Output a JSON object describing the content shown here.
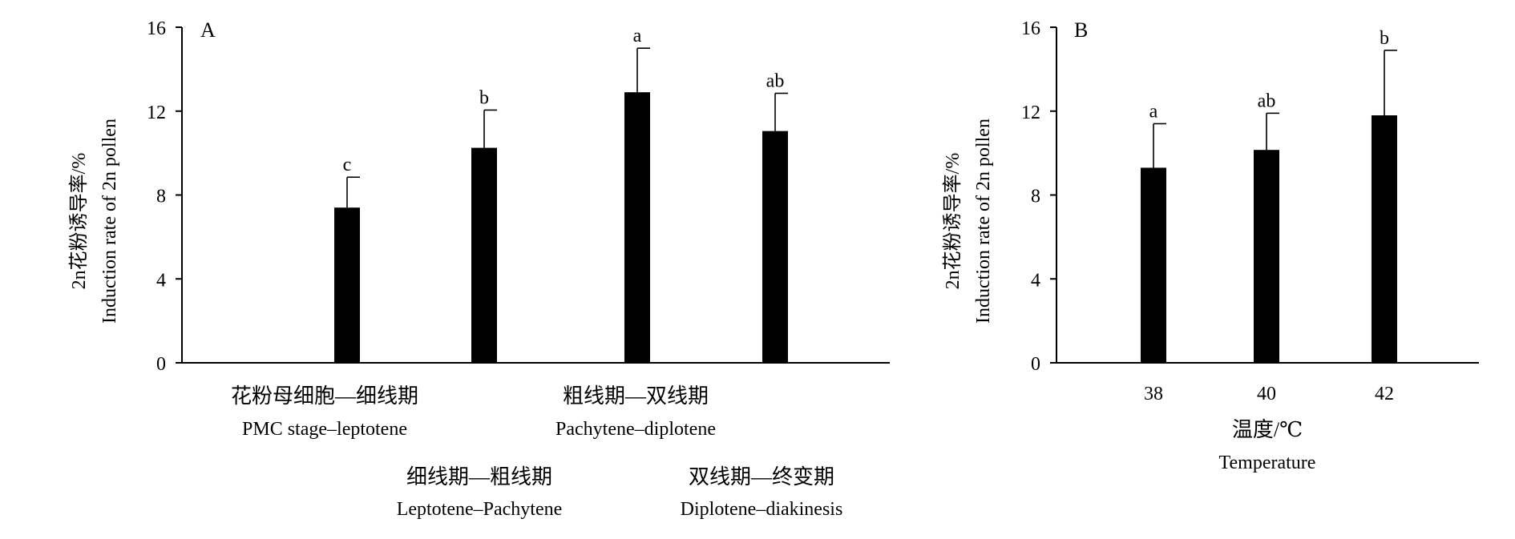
{
  "chart_data": [
    {
      "type": "bar",
      "panel_label": "A",
      "ylabel_cn": "2n花粉诱导率/%",
      "ylabel_en": "Induction rate of 2n pollen",
      "ylim": [
        0,
        16
      ],
      "yticks": [
        0,
        4,
        8,
        12,
        16
      ],
      "grid": false,
      "categories": [
        {
          "cn": "花粉母细胞—细线期",
          "en": "PMC stage–leptotene"
        },
        {
          "cn": "细线期—粗线期",
          "en": "Leptotene–Pachytene"
        },
        {
          "cn": "粗线期—双线期",
          "en": "Pachytene–diplotene"
        },
        {
          "cn": "双线期—终变期",
          "en": "Diplotene–diakinesis"
        }
      ],
      "values": [
        7.4,
        10.25,
        12.9,
        11.05
      ],
      "errors": [
        1.45,
        1.8,
        2.1,
        1.8
      ],
      "significance": [
        "c",
        "b",
        "a",
        "ab"
      ],
      "bar_color": "#000000"
    },
    {
      "type": "bar",
      "panel_label": "B",
      "ylabel_cn": "2n花粉诱导率/%",
      "ylabel_en": "Induction rate of 2n pollen",
      "xlabel_cn": "温度/℃",
      "xlabel_en": "Temperature",
      "ylim": [
        0,
        16
      ],
      "yticks": [
        0,
        4,
        8,
        12,
        16
      ],
      "grid": false,
      "categories": [
        "38",
        "40",
        "42"
      ],
      "values": [
        9.3,
        10.15,
        11.8
      ],
      "errors": [
        2.1,
        1.75,
        3.1
      ],
      "significance": [
        "a",
        "ab",
        "b"
      ],
      "bar_color": "#000000"
    }
  ]
}
